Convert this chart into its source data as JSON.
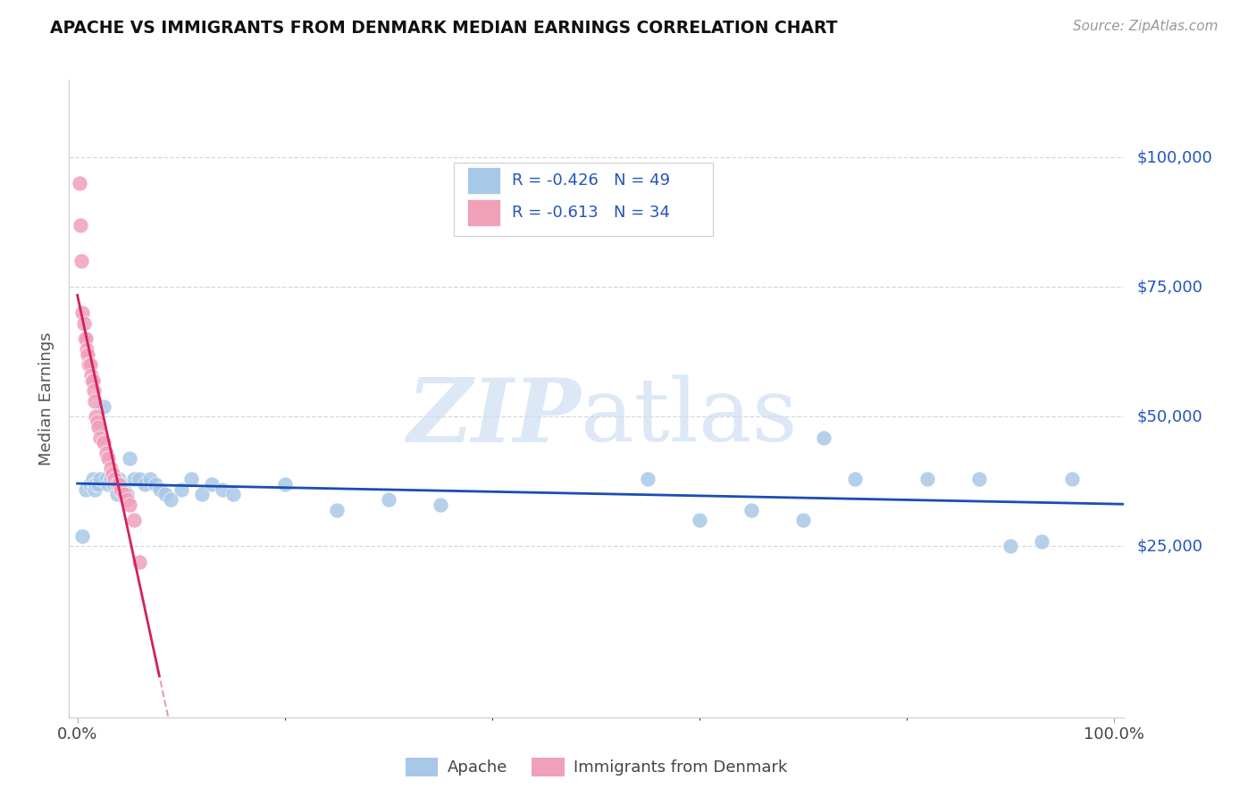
{
  "title": "APACHE VS IMMIGRANTS FROM DENMARK MEDIAN EARNINGS CORRELATION CHART",
  "source": "Source: ZipAtlas.com",
  "ylabel": "Median Earnings",
  "ytick_values": [
    25000,
    50000,
    75000,
    100000
  ],
  "ytick_labels": [
    "$25,000",
    "$50,000",
    "$75,000",
    "$100,000"
  ],
  "ylim": [
    -8000,
    115000
  ],
  "xlim": [
    -0.008,
    1.01
  ],
  "apache_R": -0.426,
  "apache_N": 49,
  "denmark_R": -0.613,
  "denmark_N": 34,
  "apache_color": "#a8c8e8",
  "denmark_color": "#f0a0b8",
  "apache_line_color": "#1a4db5",
  "denmark_line_color": "#d42060",
  "legend_text_color": "#2255bb",
  "background_color": "#ffffff",
  "grid_color": "#d8d8d8",
  "apache_x": [
    0.005,
    0.008,
    0.012,
    0.015,
    0.016,
    0.017,
    0.018,
    0.02,
    0.022,
    0.025,
    0.028,
    0.03,
    0.032,
    0.035,
    0.038,
    0.04,
    0.042,
    0.045,
    0.048,
    0.05,
    0.055,
    0.06,
    0.065,
    0.07,
    0.075,
    0.08,
    0.085,
    0.09,
    0.1,
    0.11,
    0.12,
    0.13,
    0.14,
    0.15,
    0.2,
    0.25,
    0.3,
    0.35,
    0.55,
    0.6,
    0.65,
    0.7,
    0.72,
    0.75,
    0.82,
    0.87,
    0.9,
    0.93,
    0.96
  ],
  "apache_y": [
    27000,
    36000,
    37000,
    38000,
    37000,
    36000,
    37000,
    37000,
    38000,
    52000,
    38000,
    37000,
    38000,
    37000,
    35000,
    38000,
    37000,
    36000,
    35000,
    42000,
    38000,
    38000,
    37000,
    38000,
    37000,
    36000,
    35000,
    34000,
    36000,
    38000,
    35000,
    37000,
    36000,
    35000,
    37000,
    32000,
    34000,
    33000,
    38000,
    30000,
    32000,
    30000,
    46000,
    38000,
    38000,
    38000,
    25000,
    26000,
    38000
  ],
  "denmark_x": [
    0.002,
    0.003,
    0.004,
    0.005,
    0.006,
    0.007,
    0.008,
    0.009,
    0.01,
    0.011,
    0.012,
    0.013,
    0.014,
    0.015,
    0.016,
    0.017,
    0.018,
    0.019,
    0.02,
    0.022,
    0.025,
    0.028,
    0.03,
    0.032,
    0.034,
    0.036,
    0.038,
    0.04,
    0.042,
    0.045,
    0.048,
    0.05,
    0.055,
    0.06
  ],
  "denmark_y": [
    95000,
    87000,
    80000,
    70000,
    68000,
    65000,
    65000,
    63000,
    62000,
    60000,
    60000,
    58000,
    57000,
    57000,
    55000,
    53000,
    50000,
    49000,
    48000,
    46000,
    45000,
    43000,
    42000,
    40000,
    39000,
    38000,
    37000,
    37000,
    36000,
    35000,
    34000,
    33000,
    30000,
    22000
  ]
}
